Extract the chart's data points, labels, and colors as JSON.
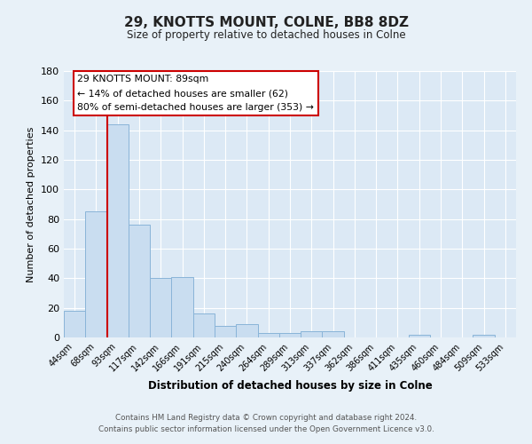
{
  "title": "29, KNOTTS MOUNT, COLNE, BB8 8DZ",
  "subtitle": "Size of property relative to detached houses in Colne",
  "xlabel": "Distribution of detached houses by size in Colne",
  "ylabel": "Number of detached properties",
  "bin_labels": [
    "44sqm",
    "68sqm",
    "93sqm",
    "117sqm",
    "142sqm",
    "166sqm",
    "191sqm",
    "215sqm",
    "240sqm",
    "264sqm",
    "289sqm",
    "313sqm",
    "337sqm",
    "362sqm",
    "386sqm",
    "411sqm",
    "435sqm",
    "460sqm",
    "484sqm",
    "509sqm",
    "533sqm"
  ],
  "bar_values": [
    18,
    85,
    144,
    76,
    40,
    41,
    16,
    8,
    9,
    3,
    3,
    4,
    4,
    0,
    0,
    0,
    2,
    0,
    0,
    2,
    0
  ],
  "bar_color": "#c9ddf0",
  "bar_edge_color": "#89b4d8",
  "ylim": [
    0,
    180
  ],
  "yticks": [
    0,
    20,
    40,
    60,
    80,
    100,
    120,
    140,
    160,
    180
  ],
  "marker_bin_index": 2,
  "annotation_title": "29 KNOTTS MOUNT: 89sqm",
  "annotation_line1": "← 14% of detached houses are smaller (62)",
  "annotation_line2": "80% of semi-detached houses are larger (353) →",
  "annotation_box_color": "#ffffff",
  "annotation_box_edge_color": "#cc0000",
  "vline_color": "#cc0000",
  "footer_line1": "Contains HM Land Registry data © Crown copyright and database right 2024.",
  "footer_line2": "Contains public sector information licensed under the Open Government Licence v3.0.",
  "background_color": "#e8f1f8",
  "plot_bg_color": "#dce9f5",
  "grid_color": "#ffffff"
}
